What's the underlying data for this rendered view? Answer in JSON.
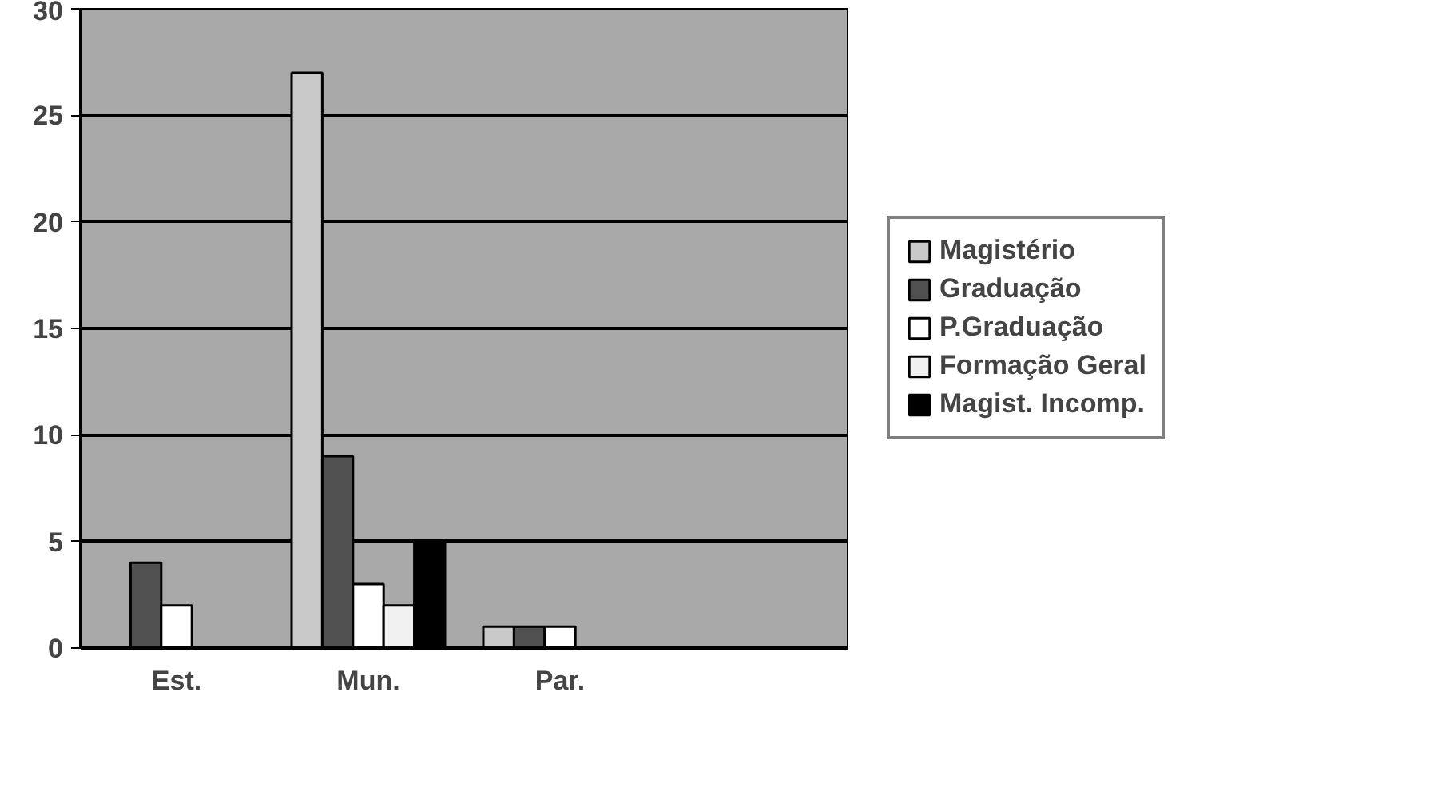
{
  "chart_data": {
    "type": "bar",
    "categories": [
      "Est.",
      "Mun.",
      "Par.",
      null
    ],
    "series": [
      {
        "name": "Magistério",
        "color": "#c8c8c8",
        "values": [
          0,
          27,
          1,
          0
        ]
      },
      {
        "name": "Graduação",
        "color": "#505050",
        "values": [
          4,
          9,
          1,
          0
        ]
      },
      {
        "name": "P.Graduação",
        "color": "#ffffff",
        "values": [
          2,
          3,
          1,
          0
        ]
      },
      {
        "name": "Formação Geral",
        "color": "#f0f0f0",
        "values": [
          0,
          2,
          0,
          0
        ]
      },
      {
        "name": "Magist. Incomp.",
        "color": "#000000",
        "values": [
          0,
          5,
          0,
          0
        ]
      }
    ],
    "ylim": [
      0,
      30
    ],
    "yticks": [
      0,
      5,
      10,
      15,
      20,
      25,
      30
    ],
    "grid": "y",
    "legend": "right"
  }
}
